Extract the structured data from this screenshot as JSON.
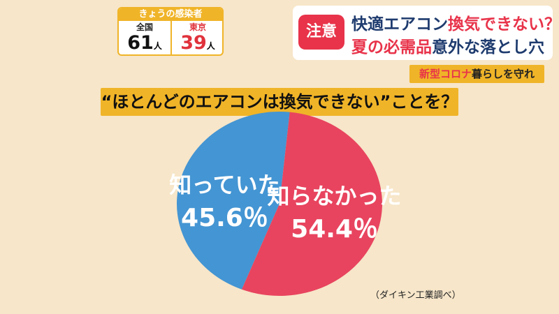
{
  "infection_box": {
    "title": "きょうの感染者",
    "national_label": "全国",
    "national_value": "61",
    "tokyo_label": "東京",
    "tokyo_value": "39",
    "unit": "人"
  },
  "headline": {
    "badge": "注意",
    "line1_plain": "快適エアコン",
    "line1_accent": "換気できない？",
    "line2_accent": "夏の必需品",
    "line2_plain": "意外な落とし穴"
  },
  "corner": {
    "accent": "新型コロナ",
    "rest": "暮らしを守れ"
  },
  "question": "“ほとんどのエアコンは換気できない”ことを？",
  "source": "（ダイキン工業調べ）",
  "colors": {
    "background": "#f7e6c9",
    "banner": "#f0b428",
    "accent_red": "#e8334a",
    "headline_blue": "#1e3b6e",
    "slice_knew": "#4495d3",
    "slice_did_not_know": "#e8445f"
  },
  "chart_data": {
    "type": "pie",
    "title": "“ほとんどのエアコンは換気できない”ことを？",
    "slices": [
      {
        "label": "知っていた",
        "value": 45.6,
        "display": "45.6％",
        "color": "#4495d3"
      },
      {
        "label": "知らなかった",
        "value": 54.4,
        "display": "54.4％",
        "color": "#e8445f"
      }
    ]
  }
}
